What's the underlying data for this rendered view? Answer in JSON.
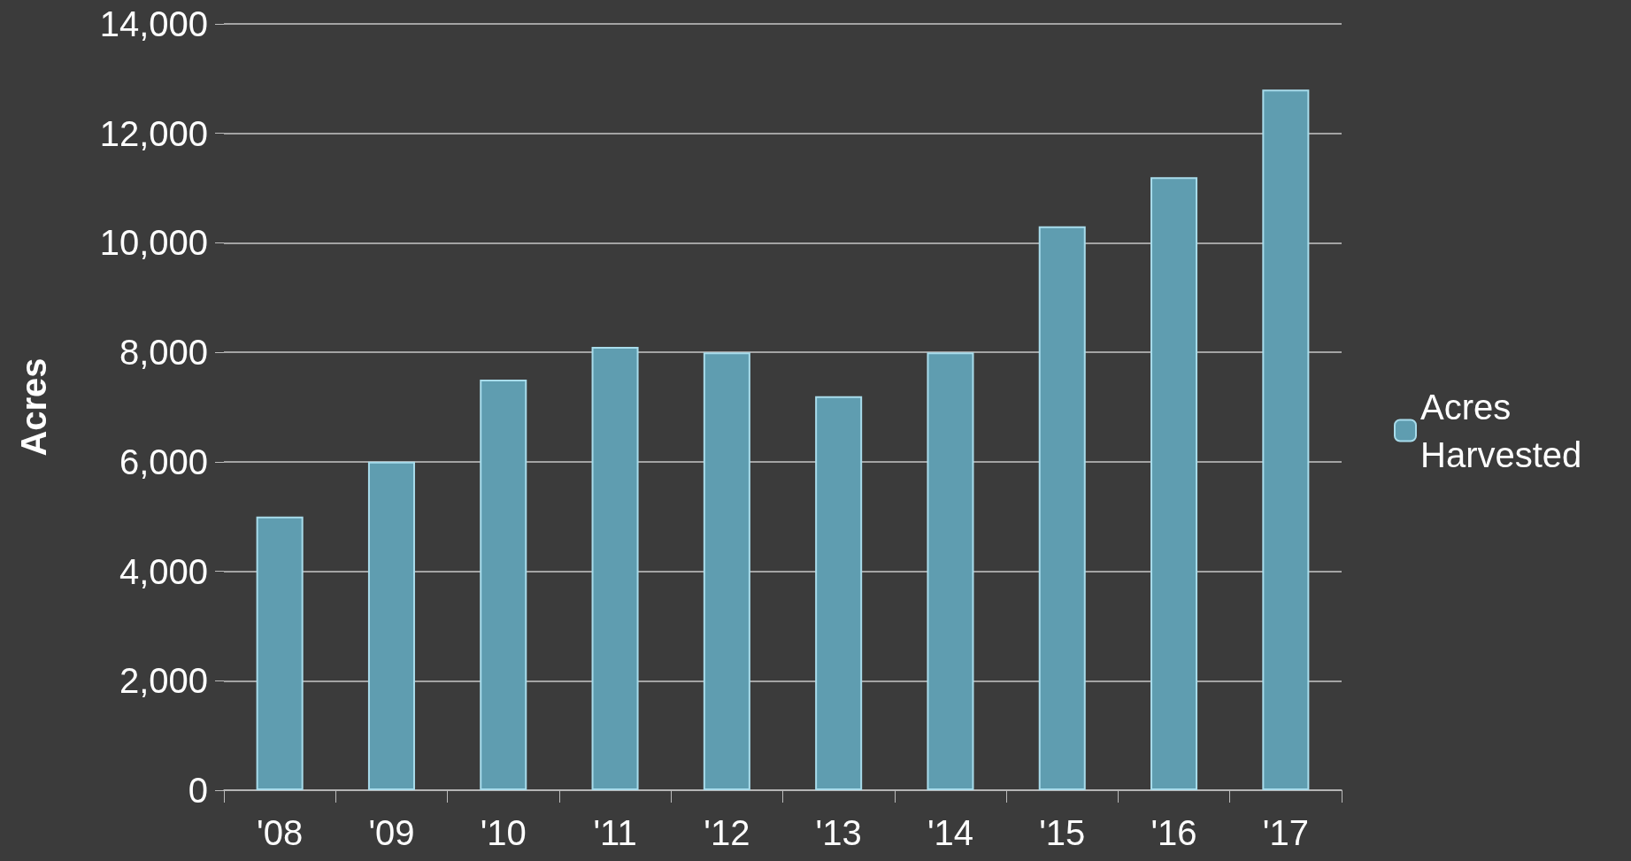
{
  "chart_data": {
    "type": "bar",
    "ylabel": "Acres",
    "categories": [
      "'08",
      "'09",
      "'10",
      "'11",
      "'12",
      "'13",
      "'14",
      "'15",
      "'16",
      "'17"
    ],
    "series": [
      {
        "name": "Acres Harvested",
        "color": "#5f9db0",
        "values": [
          5000,
          6000,
          7500,
          8100,
          8000,
          7200,
          8000,
          10300,
          11200,
          12800
        ]
      }
    ],
    "ylim": [
      0,
      14000
    ],
    "yticks": [
      0,
      {
        "value": 2000,
        "label": "2,000"
      },
      {
        "value": 4000,
        "label": "4,000"
      },
      {
        "value": 6000,
        "label": "6,000"
      },
      {
        "value": 8000,
        "label": "8,000"
      },
      {
        "value": 10000,
        "label": "10,000"
      },
      {
        "value": 12000,
        "label": "12,000"
      },
      {
        "value": 14000,
        "label": "14,000"
      }
    ],
    "grid": "y",
    "legend": "right"
  }
}
